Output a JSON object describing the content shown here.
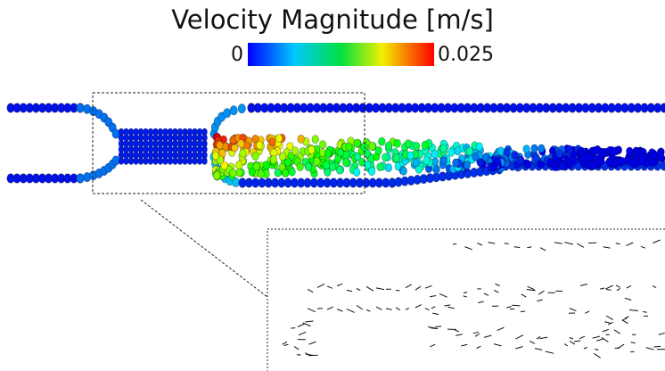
{
  "colorbar": {
    "title": "Velocity Magnitude [m/s]",
    "min": 0,
    "max": 0.025
  }
}
